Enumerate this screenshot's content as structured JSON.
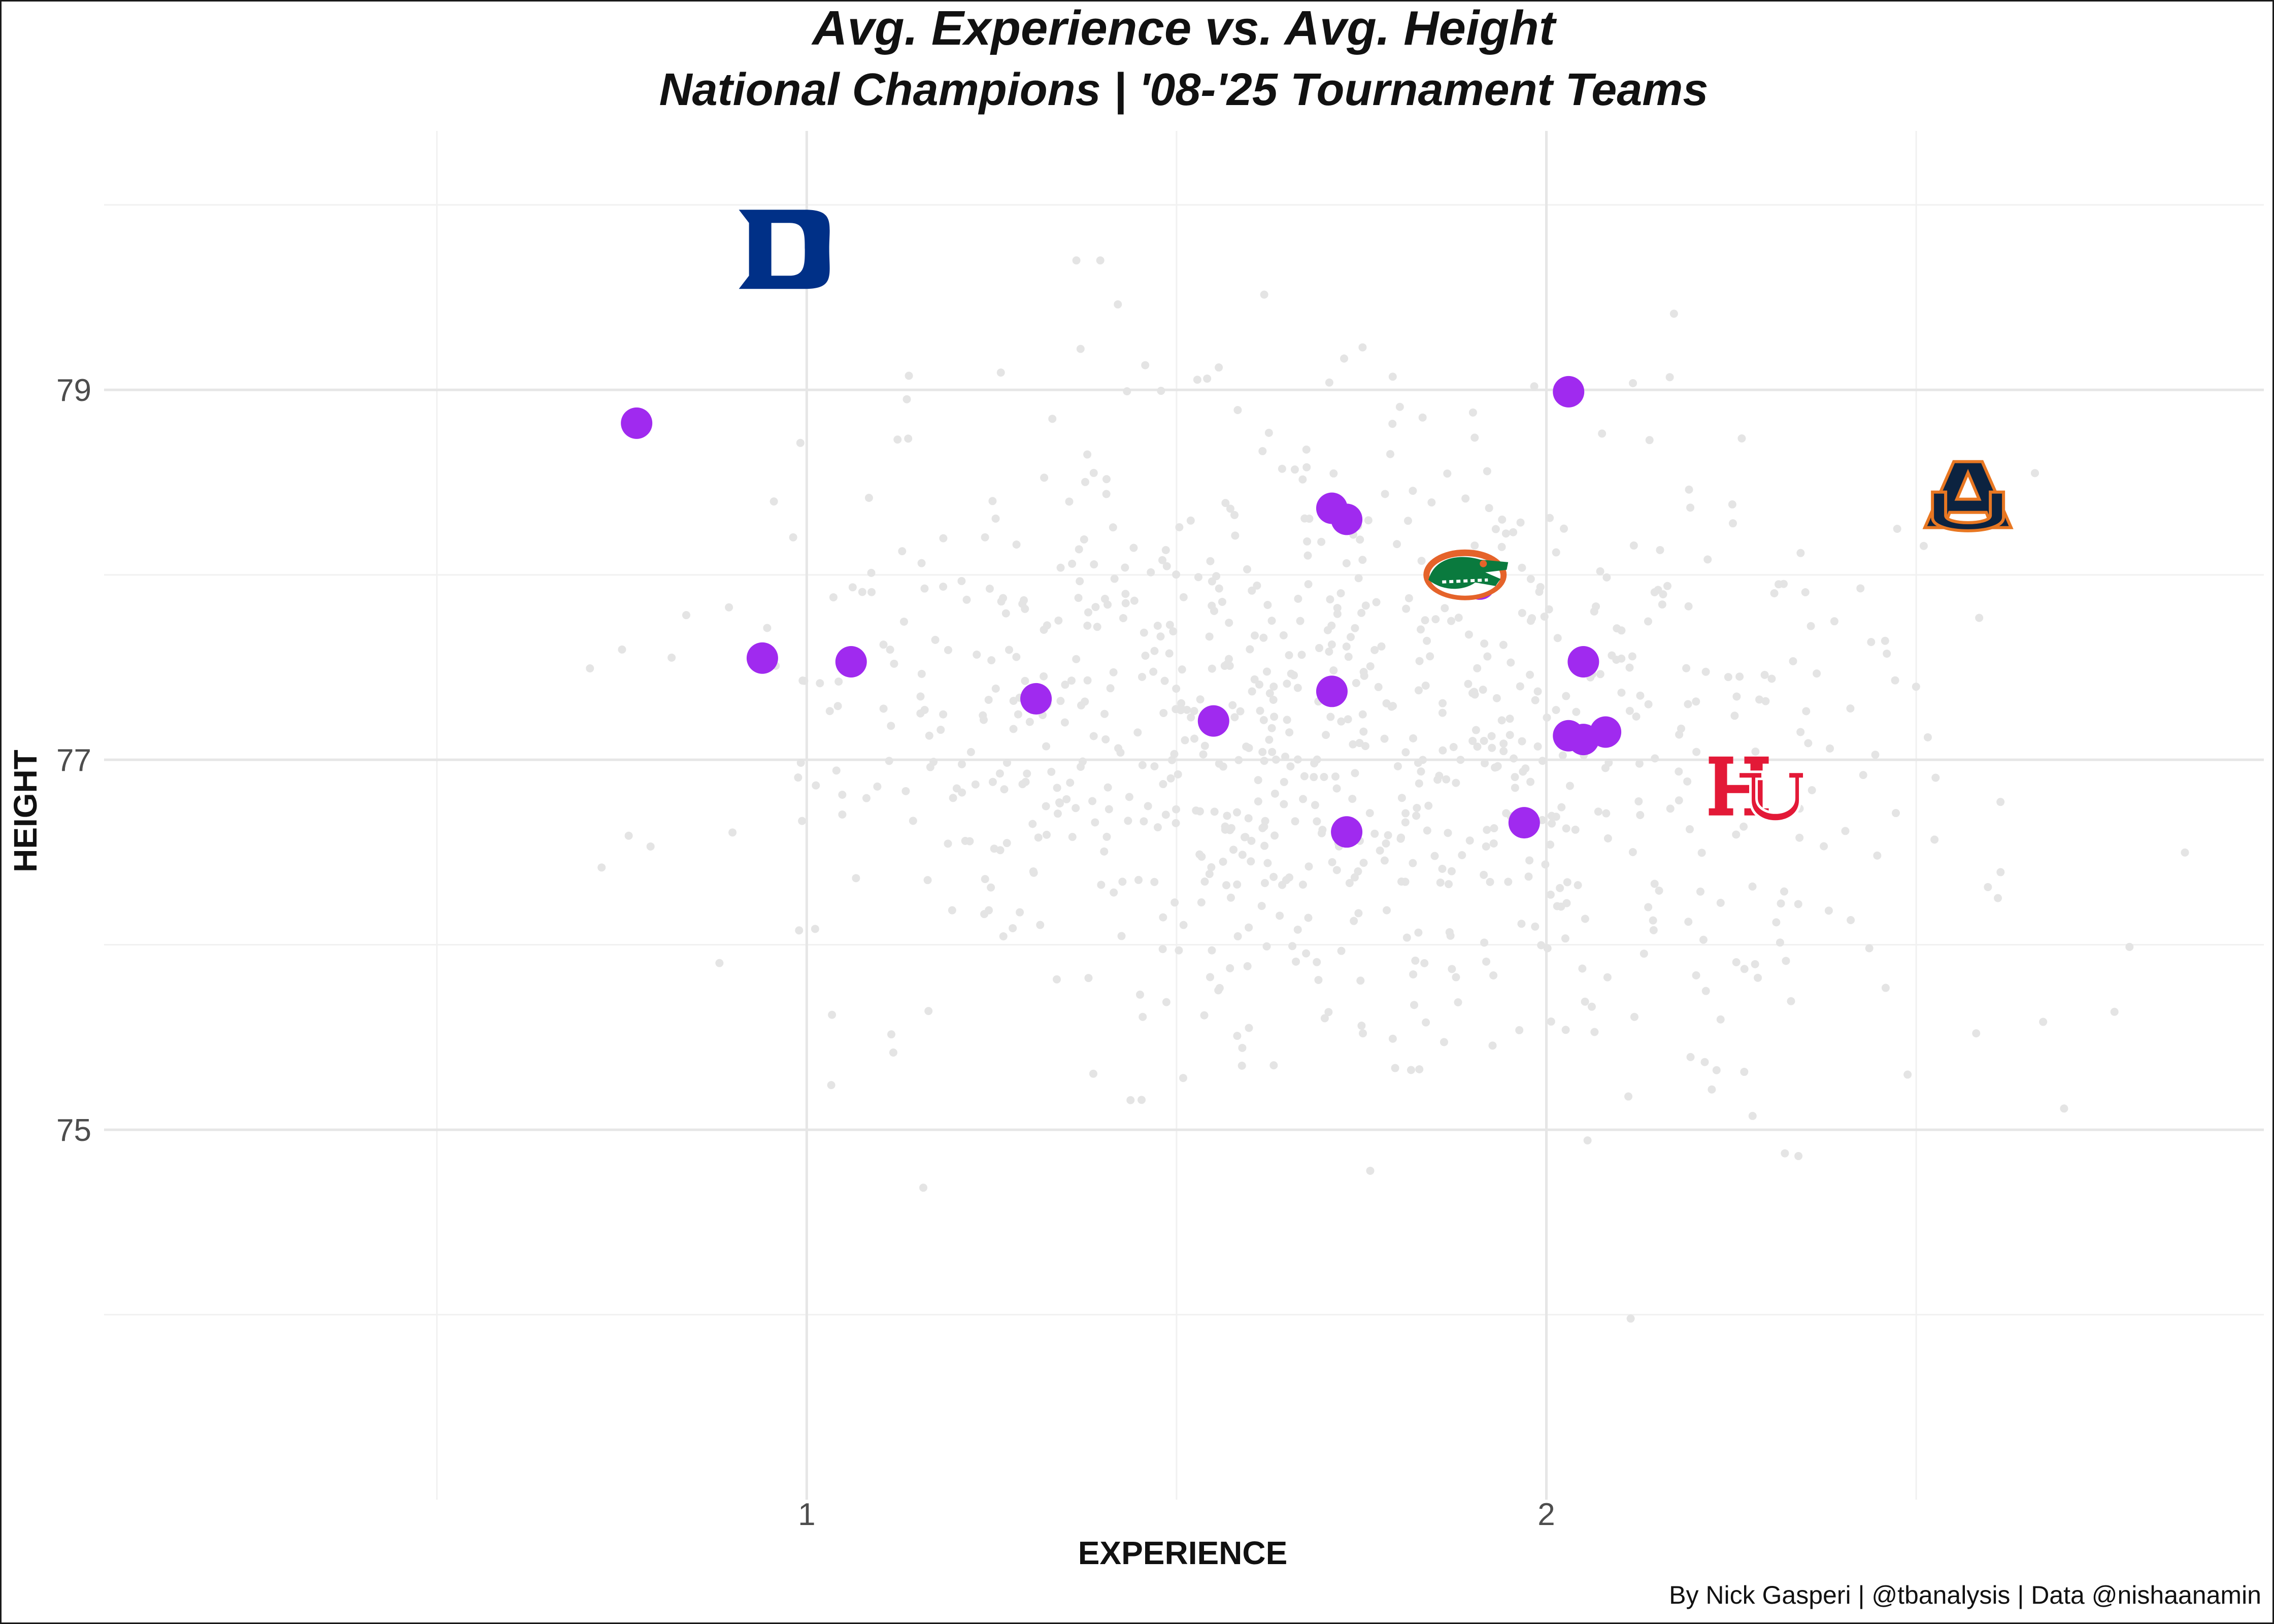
{
  "colors": {
    "champion": "#a02aef",
    "background_team": "#e4e4e4",
    "grid_major": "#e6e6e6",
    "grid_minor": "#f1f1f1",
    "duke": "#003087",
    "florida_green": "#0a7a3e",
    "florida_orange": "#e5632a",
    "auburn_navy": "#0c2340",
    "auburn_orange": "#e87722",
    "houston_red": "#e31937"
  },
  "chart_data": {
    "type": "scatter",
    "title": "Avg. Experience vs. Avg. Height",
    "subtitle": "National Champions | '08-'25 Tournament Teams",
    "xlabel": "EXPERIENCE",
    "ylabel": "HEIGHT",
    "caption": "By Nick Gasperi | @tbanalysis | Data @nishaanamin",
    "xlim": [
      0.05,
      2.97
    ],
    "ylim": [
      73.0,
      80.4
    ],
    "x_ticks": [
      1,
      2
    ],
    "x_tick_labels": [
      "1",
      "2"
    ],
    "x_minor_ticks": [
      0.5,
      1.5,
      2.5
    ],
    "y_ticks": [
      75,
      77,
      79
    ],
    "y_tick_labels": [
      "75",
      "77",
      "79"
    ],
    "y_minor_ticks": [
      74,
      76,
      78,
      80
    ],
    "grid": true,
    "legend": "none",
    "champions": [
      {
        "x": 0.77,
        "y": 78.82
      },
      {
        "x": 0.94,
        "y": 77.55
      },
      {
        "x": 1.06,
        "y": 77.53
      },
      {
        "x": 1.31,
        "y": 77.33
      },
      {
        "x": 1.55,
        "y": 77.21
      },
      {
        "x": 1.71,
        "y": 78.36
      },
      {
        "x": 1.73,
        "y": 78.3
      },
      {
        "x": 1.71,
        "y": 77.37
      },
      {
        "x": 1.73,
        "y": 76.61
      },
      {
        "x": 1.91,
        "y": 77.95
      },
      {
        "x": 1.97,
        "y": 76.66
      },
      {
        "x": 2.03,
        "y": 78.99
      },
      {
        "x": 2.05,
        "y": 77.53
      },
      {
        "x": 2.03,
        "y": 77.13
      },
      {
        "x": 2.05,
        "y": 77.11
      },
      {
        "x": 2.08,
        "y": 77.15
      }
    ],
    "team_logos": [
      {
        "team": "Duke",
        "icon": "duke-logo",
        "x": 0.97,
        "y": 79.76
      },
      {
        "team": "Florida",
        "icon": "florida-gator-logo",
        "x": 1.89,
        "y": 78.0
      },
      {
        "team": "Auburn",
        "icon": "auburn-logo",
        "x": 2.57,
        "y": 78.42
      },
      {
        "team": "Houston",
        "icon": "houston-logo",
        "x": 2.28,
        "y": 76.82
      }
    ],
    "background_teams_note_count": 900
  }
}
